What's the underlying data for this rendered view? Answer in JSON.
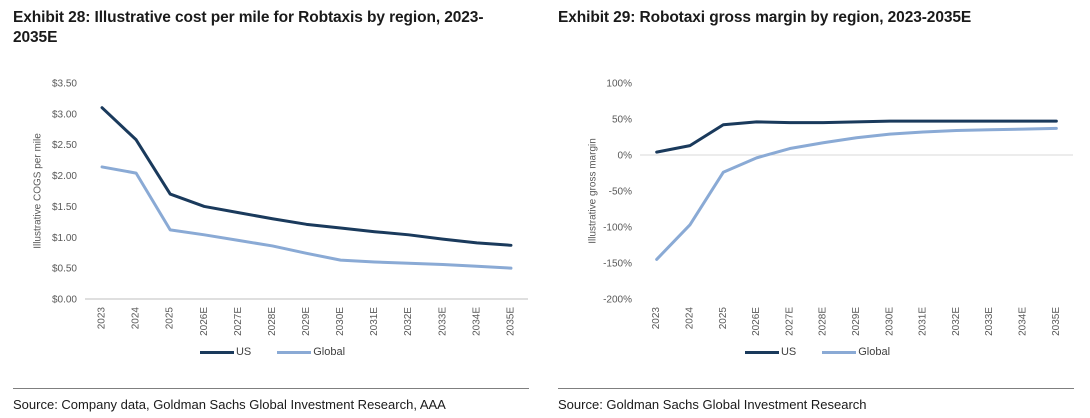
{
  "colors": {
    "us_line": "#1a3a5c",
    "global_line": "#8aaad5",
    "gridline": "#d9d9d9",
    "axis_line": "#bfbfbf",
    "axis_text": "#595959",
    "title_text": "#1a1a1a"
  },
  "chart_data": [
    {
      "type": "line",
      "title": "Exhibit 28: Illustrative cost per mile for Robtaxis by region, 2023-2035E",
      "ylabel": "Illustrative COGS per mile",
      "xlabel": "",
      "categories": [
        "2023",
        "2024",
        "2025",
        "2026E",
        "2027E",
        "2028E",
        "2029E",
        "2030E",
        "2031E",
        "2032E",
        "2033E",
        "2034E",
        "2035E"
      ],
      "series": [
        {
          "name": "US",
          "color": "#1a3a5c",
          "values": [
            3.1,
            2.58,
            1.7,
            1.5,
            1.4,
            1.3,
            1.21,
            1.15,
            1.09,
            1.04,
            0.97,
            0.91,
            0.87
          ]
        },
        {
          "name": "Global",
          "color": "#8aaad5",
          "values": [
            2.14,
            2.04,
            1.12,
            1.04,
            0.95,
            0.86,
            0.74,
            0.63,
            0.6,
            0.58,
            0.56,
            0.53,
            0.5
          ]
        }
      ],
      "ylim": [
        0,
        3.5
      ],
      "ytick_step": 0.5,
      "ytick_format": "dollar2",
      "grid": false,
      "zero_gridline": false,
      "show_bottom_axis": true,
      "legend_position": "bottom",
      "source": "Source: Company data, Goldman Sachs Global Investment Research, AAA"
    },
    {
      "type": "line",
      "title": "Exhibit 29: Robotaxi gross margin by region, 2023-2035E",
      "ylabel": "Illustrative gross margin",
      "xlabel": "",
      "categories": [
        "2023",
        "2024",
        "2025",
        "2026E",
        "2027E",
        "2028E",
        "2029E",
        "2030E",
        "2031E",
        "2032E",
        "2033E",
        "2034E",
        "2035E"
      ],
      "series": [
        {
          "name": "US",
          "color": "#1a3a5c",
          "values": [
            4,
            13,
            42,
            46,
            45,
            45,
            46,
            47,
            47,
            47,
            47,
            47,
            47
          ]
        },
        {
          "name": "Global",
          "color": "#8aaad5",
          "values": [
            -145,
            -97,
            -24,
            -4,
            9,
            17,
            24,
            29,
            32,
            34,
            35,
            36,
            37
          ]
        }
      ],
      "ylim": [
        -200,
        100
      ],
      "ytick_step": 50,
      "ytick_format": "percent",
      "grid": false,
      "zero_gridline": true,
      "show_bottom_axis": false,
      "legend_position": "bottom",
      "source": "Source: Goldman Sachs Global Investment Research"
    }
  ]
}
